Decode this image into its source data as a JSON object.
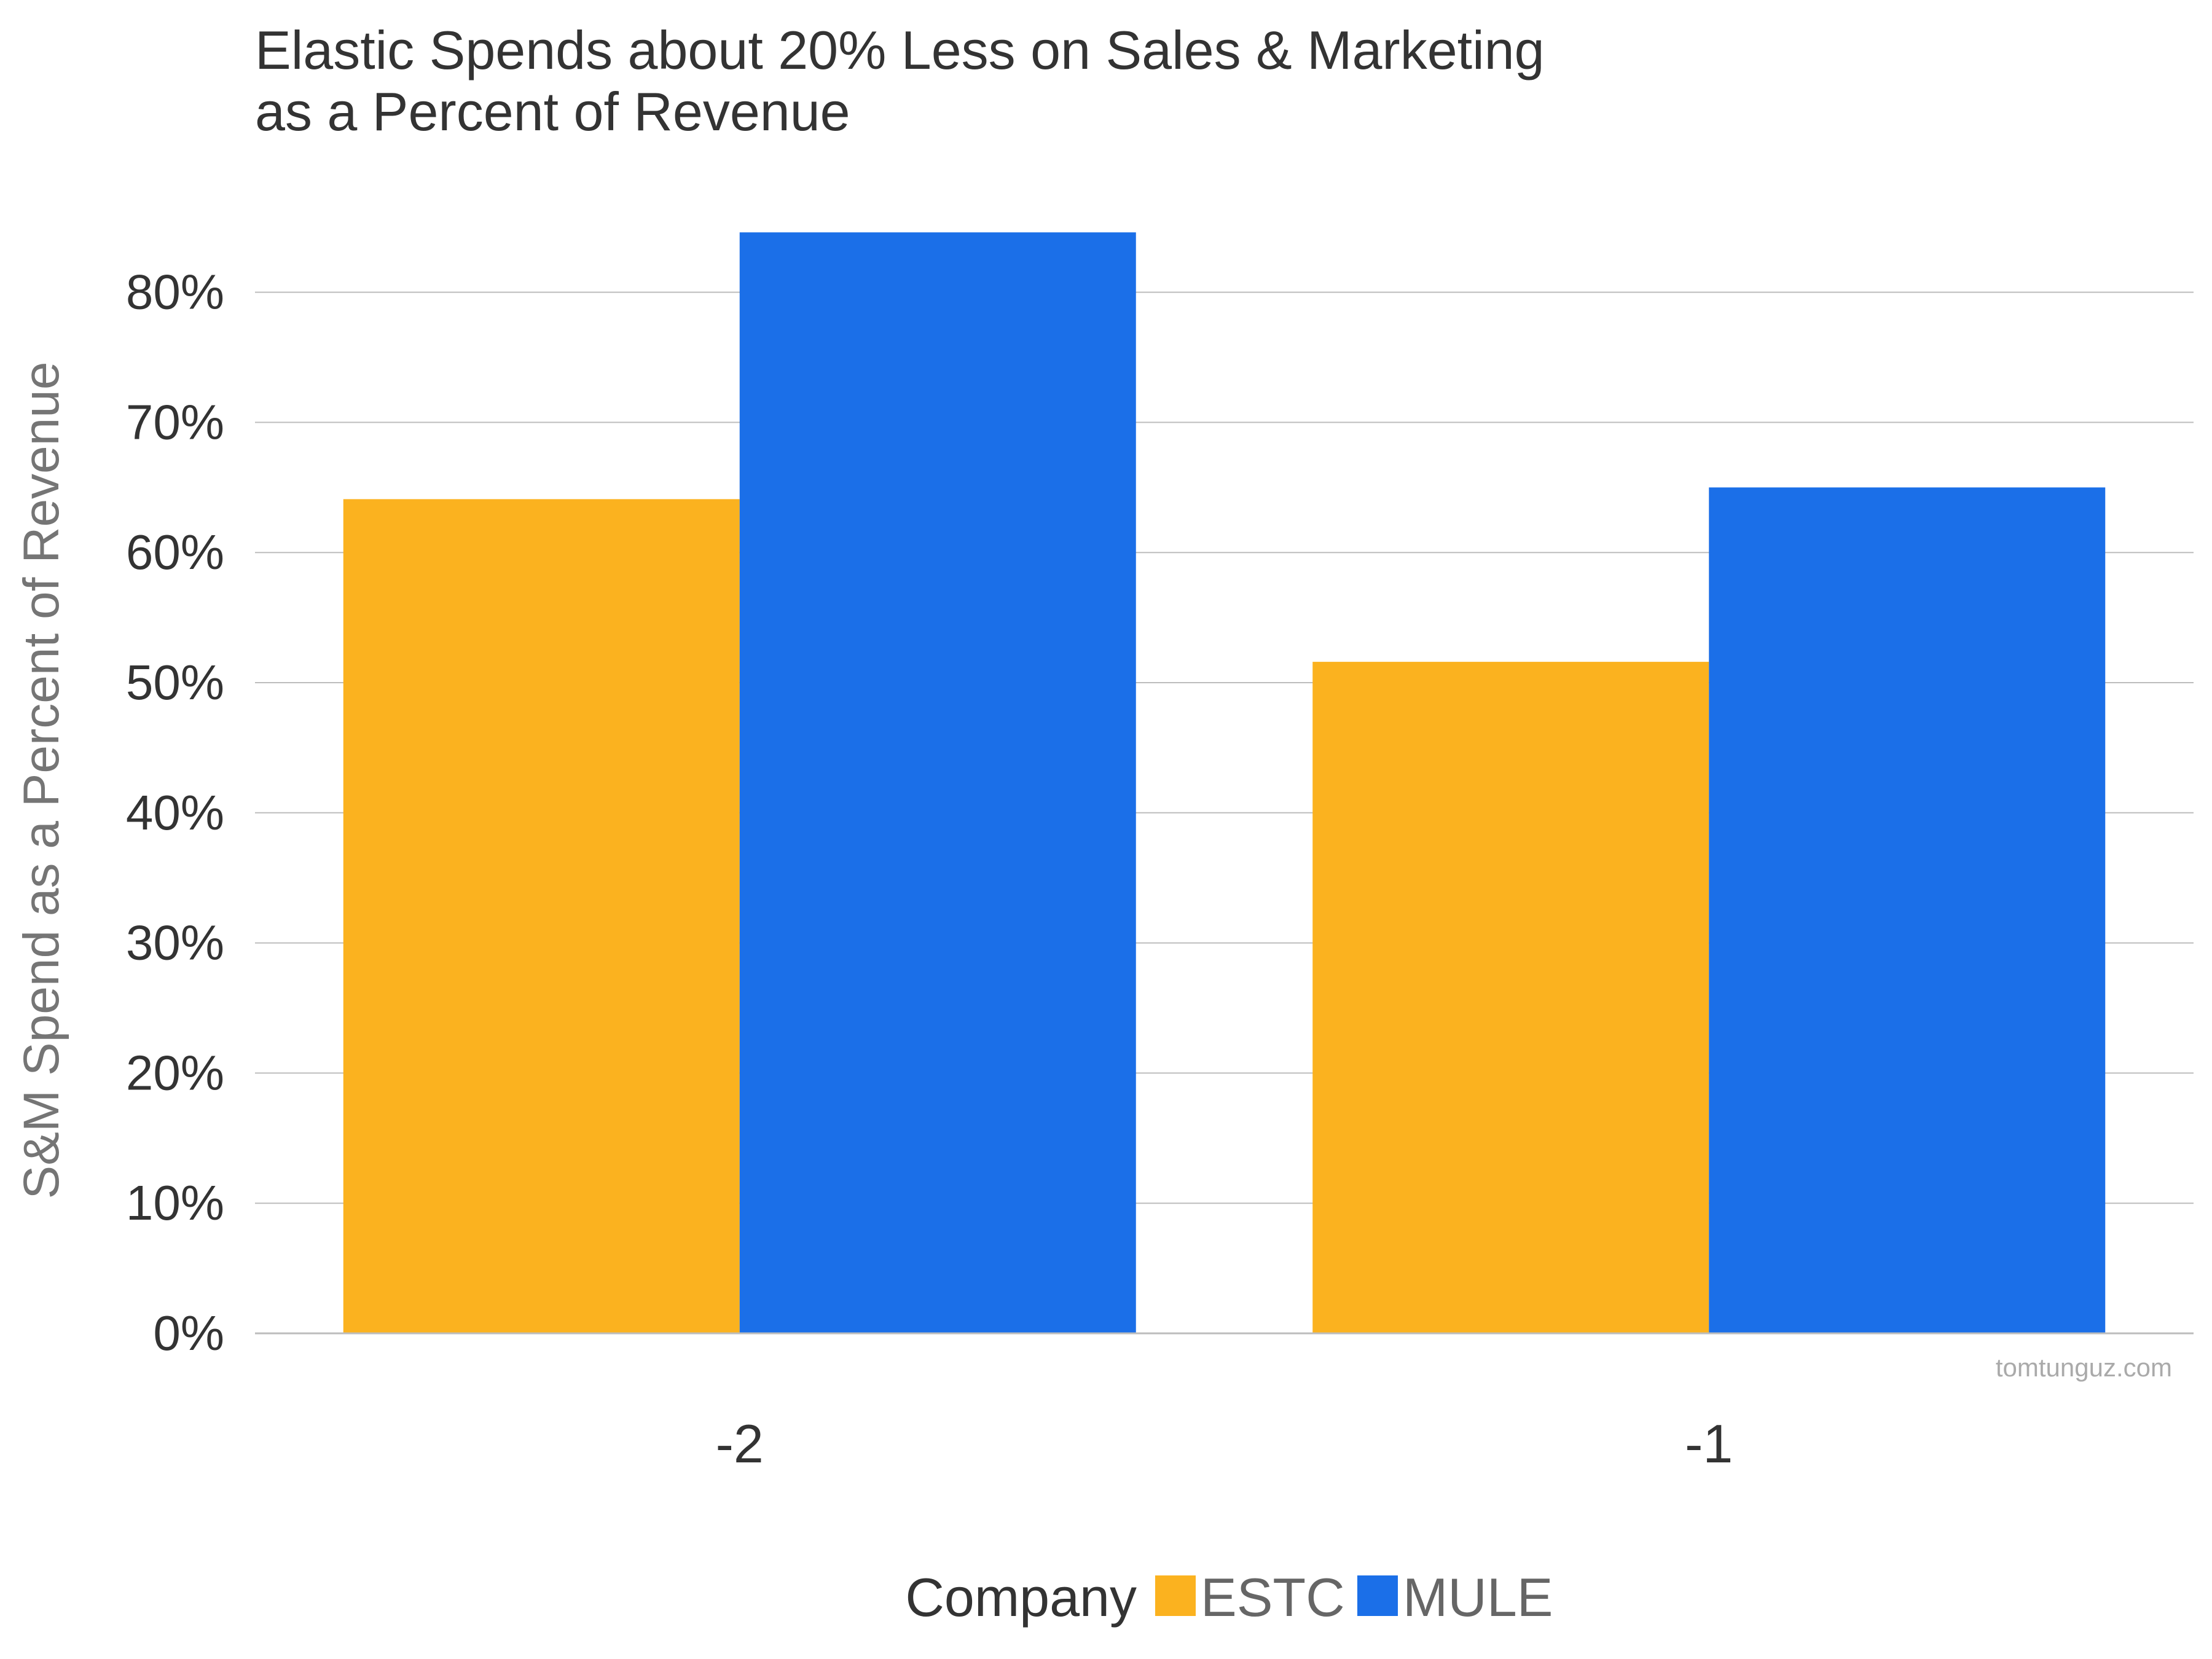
{
  "chart_data": {
    "type": "bar",
    "title": "Elastic Spends about 20% Less on Sales & Marketing\nas a Percent of Revenue",
    "title_lines": [
      "Elastic Spends about 20% Less on Sales & Marketing",
      "as a Percent of Revenue"
    ],
    "xlabel": "",
    "ylabel": "S&M Spend as a Percent of Revenue",
    "ylim": [
      0,
      85
    ],
    "y_ticks": [
      {
        "value": 0,
        "label": "0%"
      },
      {
        "value": 10,
        "label": "10%"
      },
      {
        "value": 20,
        "label": "20%"
      },
      {
        "value": 30,
        "label": "30%"
      },
      {
        "value": 40,
        "label": "40%"
      },
      {
        "value": 50,
        "label": "50%"
      },
      {
        "value": 60,
        "label": "60%"
      },
      {
        "value": 70,
        "label": "70%"
      },
      {
        "value": 80,
        "label": "80%"
      }
    ],
    "categories": [
      "-2",
      "-1"
    ],
    "series": [
      {
        "name": "ESTC",
        "color": "#FBB21F",
        "values": [
          64.1,
          51.6
        ]
      },
      {
        "name": "MULE",
        "color": "#1B6FE8",
        "values": [
          84.6,
          65.0
        ]
      }
    ],
    "grid": true,
    "legend": {
      "title": "Company",
      "placement": "bottom-center"
    },
    "watermark": "tomtunguz.com",
    "colors": {
      "text": "#333333",
      "axis_title": "#757575",
      "legend_label": "#666666",
      "gridline": "#BDBDBD",
      "watermark": "#AAAAAA"
    }
  }
}
